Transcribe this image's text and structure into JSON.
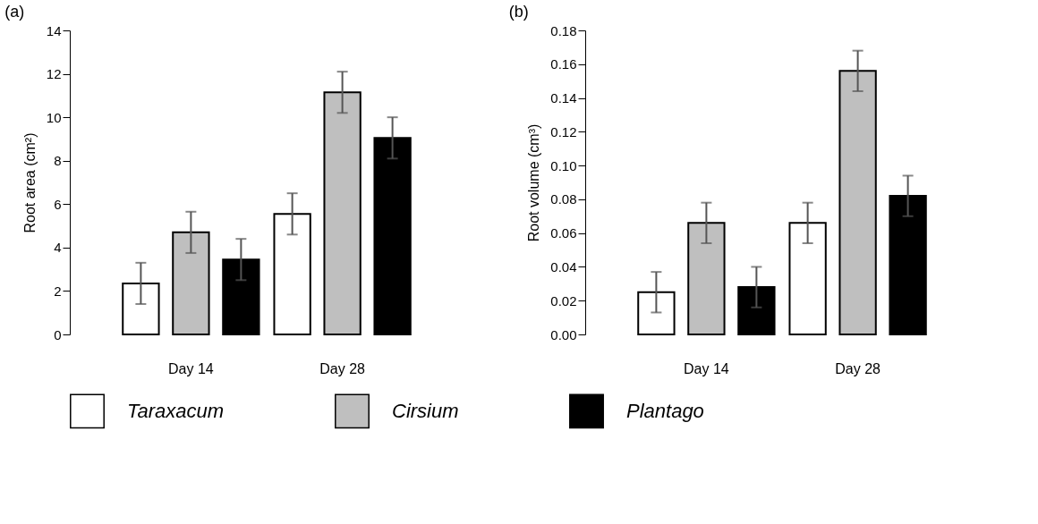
{
  "chart_data": [
    {
      "type": "bar",
      "title": "(a)",
      "ylabel": "Root area (cm²)",
      "categories": [
        "Day 14",
        "Day 28"
      ],
      "ylim": [
        0,
        14
      ],
      "yticks": [
        0,
        2,
        4,
        6,
        8,
        10,
        12,
        14
      ],
      "grid": false,
      "legend": "bottom",
      "series": [
        {
          "name": "Taraxacum",
          "color": "#ffffff",
          "values": [
            2.35,
            5.55
          ],
          "errors": [
            0.95,
            0.95
          ]
        },
        {
          "name": "Cirsium",
          "color": "#bfbfbf",
          "values": [
            4.7,
            11.15
          ],
          "errors": [
            0.95,
            0.95
          ]
        },
        {
          "name": "Plantago",
          "color": "#000000",
          "values": [
            3.45,
            9.05
          ],
          "errors": [
            0.95,
            0.95
          ]
        }
      ]
    },
    {
      "type": "bar",
      "title": "(b)",
      "ylabel": "Root volume (cm³)",
      "categories": [
        "Day 14",
        "Day 28"
      ],
      "ylim": [
        0,
        0.18
      ],
      "yticks": [
        {
          "value": 0,
          "label": "0.00"
        },
        {
          "value": 0.02,
          "label": "0.02"
        },
        {
          "value": 0.04,
          "label": "0.04"
        },
        {
          "value": 0.06,
          "label": "0.06"
        },
        {
          "value": 0.08,
          "label": "0.08"
        },
        {
          "value": 0.1,
          "label": "0.10"
        },
        {
          "value": 0.12,
          "label": "0.12"
        },
        {
          "value": 0.14,
          "label": "0.14"
        },
        {
          "value": 0.16,
          "label": "0.16"
        },
        {
          "value": 0.18,
          "label": "0.18"
        }
      ],
      "grid": false,
      "legend": "bottom",
      "series": [
        {
          "name": "Taraxacum",
          "color": "#ffffff",
          "values": [
            0.025,
            0.066
          ],
          "errors": [
            0.012,
            0.012
          ]
        },
        {
          "name": "Cirsium",
          "color": "#bfbfbf",
          "values": [
            0.066,
            0.156
          ],
          "errors": [
            0.012,
            0.012
          ]
        },
        {
          "name": "Plantago",
          "color": "#000000",
          "values": [
            0.028,
            0.082
          ],
          "errors": [
            0.012,
            0.012
          ]
        }
      ]
    }
  ]
}
